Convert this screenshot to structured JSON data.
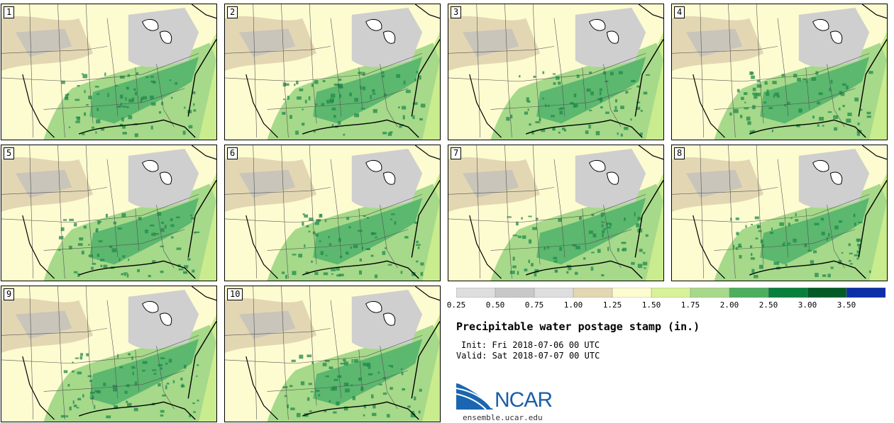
{
  "map": {
    "stamps": [
      {
        "label": "1"
      },
      {
        "label": "2"
      },
      {
        "label": "3"
      },
      {
        "label": "4"
      },
      {
        "label": "5"
      },
      {
        "label": "6"
      },
      {
        "label": "7"
      },
      {
        "label": "8"
      },
      {
        "label": "9"
      },
      {
        "label": "10"
      }
    ],
    "palette": {
      "ocean_moist": "#c9ec8e",
      "land_light": "#fdfbd0",
      "tan": "#e3d7b3",
      "gray": "#cfcfcf",
      "gray_dark": "#bdbdbd",
      "green_light": "#a6d98a",
      "green_mid": "#4fb06a",
      "green_dark": "#1f8a4a"
    }
  },
  "colorbar": {
    "colors": [
      "#dedede",
      "#c8c8c8",
      "#dedede",
      "#e3d7b3",
      "#fdfbd0",
      "#d8f29a",
      "#a8d98a",
      "#4caf5f",
      "#08803b",
      "#035a25",
      "#0b2fa8"
    ],
    "ticks": [
      "0.25",
      "0.50",
      "0.75",
      "1.00",
      "1.25",
      "1.50",
      "1.75",
      "2.00",
      "2.50",
      "3.00",
      "3.50"
    ]
  },
  "title": "Precipitable water postage stamp (in.)",
  "init_line": "Init: Fri 2018-07-06 00 UTC",
  "valid_line": "Valid: Sat 2018-07-07 00 UTC",
  "logo": {
    "name": "NCAR",
    "url": "ensemble.ucar.edu"
  }
}
